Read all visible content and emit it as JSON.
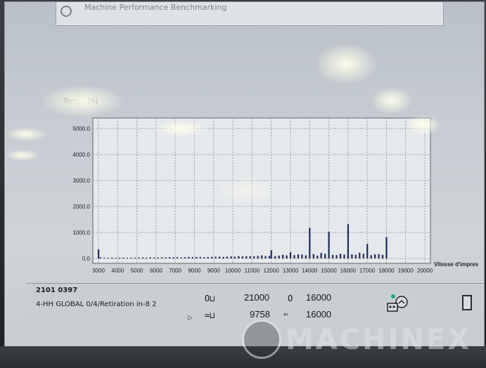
{
  "top_panel": {
    "text": "Machine Performance Benchmarking"
  },
  "chart_label": "Temps [h]",
  "axis_title_x": "Vitesse d'impres",
  "footer": {
    "machine_id": "2101 0397",
    "job": "4-HH GLOBAL  0/4/Retiration in-8 2",
    "value_1": "21000",
    "value_2": "16000",
    "value_3": "9758",
    "value_4": "16000"
  },
  "watermark": "MACHINEX",
  "chart_data": {
    "type": "bar",
    "xlim": [
      3000,
      20000
    ],
    "ylim": [
      0,
      5000
    ],
    "x_ticks": [
      "3000",
      "4000",
      "5000",
      "6000",
      "7000",
      "8000",
      "9000",
      "10000",
      "11000",
      "12000",
      "13000",
      "14000",
      "15000",
      "16000",
      "17000",
      "18000",
      "19000",
      "20000"
    ],
    "y_ticks": [
      "0.0",
      "1000.0",
      "2000.0",
      "3000.0",
      "4000.0",
      "5000.0"
    ],
    "grid": true,
    "bar_color": "#1c2a5a",
    "x": [
      3000,
      3100,
      3300,
      3500,
      3700,
      3900,
      4100,
      4300,
      4500,
      4700,
      4900,
      5100,
      5300,
      5500,
      5700,
      5900,
      6100,
      6300,
      6500,
      6700,
      6900,
      7100,
      7300,
      7500,
      7700,
      7900,
      8100,
      8300,
      8500,
      8700,
      8900,
      9100,
      9300,
      9500,
      9700,
      9900,
      10100,
      10300,
      10500,
      10700,
      10900,
      11100,
      11300,
      11500,
      11700,
      11900,
      12000,
      12200,
      12400,
      12600,
      12800,
      13000,
      13200,
      13400,
      13600,
      13800,
      14000,
      14200,
      14400,
      14600,
      14800,
      15000,
      15200,
      15400,
      15600,
      15800,
      16000,
      16200,
      16400,
      16600,
      16800,
      17000,
      17200,
      17400,
      17600,
      17800,
      18000
    ],
    "values": [
      350,
      40,
      30,
      25,
      30,
      25,
      30,
      35,
      25,
      30,
      30,
      40,
      35,
      30,
      40,
      35,
      40,
      45,
      40,
      50,
      45,
      50,
      40,
      45,
      60,
      50,
      55,
      60,
      45,
      55,
      60,
      65,
      70,
      60,
      70,
      80,
      70,
      90,
      80,
      85,
      90,
      80,
      100,
      120,
      90,
      100,
      320,
      90,
      110,
      140,
      120,
      240,
      130,
      160,
      150,
      120,
      1180,
      170,
      110,
      220,
      180,
      1020,
      140,
      130,
      180,
      150,
      1320,
      160,
      140,
      220,
      180,
      560,
      130,
      160,
      170,
      140,
      820
    ]
  }
}
